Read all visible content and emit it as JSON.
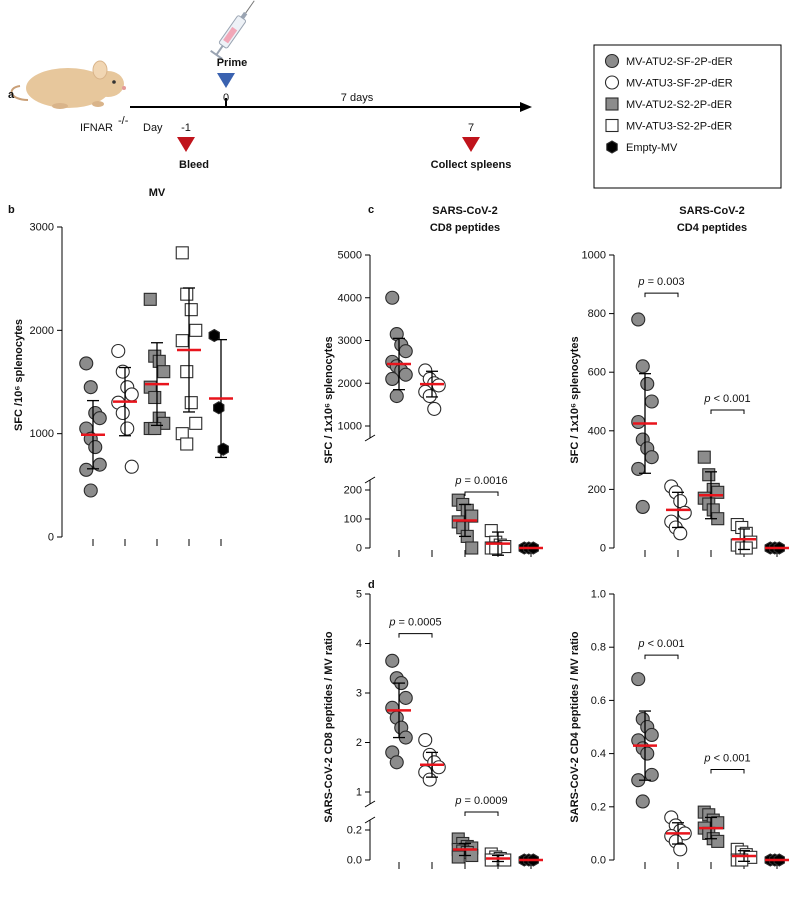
{
  "figure": {
    "panel_labels": [
      "a",
      "b",
      "c",
      "d"
    ],
    "timeline": {
      "host": "IFNAR",
      "host_sup": "-/-",
      "day_label": "Day",
      "interval": "7 days",
      "events": [
        {
          "day": "-1",
          "label": "Bleed",
          "color": "#c0141c"
        },
        {
          "day": "0",
          "label": "Prime",
          "color": "#3a62b0"
        },
        {
          "day": "7",
          "label": "Collect spleens",
          "color": "#c0141c"
        }
      ]
    },
    "legend": {
      "entries": [
        {
          "label": "MV-ATU2-SF-2P-dER",
          "marker": "circle",
          "fill": "#8c8c8c"
        },
        {
          "label": "MV-ATU3-SF-2P-dER",
          "marker": "circle",
          "fill": "#ffffff"
        },
        {
          "label": "MV-ATU2-S2-2P-dER",
          "marker": "square",
          "fill": "#8c8c8c"
        },
        {
          "label": "MV-ATU3-S2-2P-dER",
          "marker": "square",
          "fill": "#ffffff"
        },
        {
          "label": "Empty-MV",
          "marker": "hexagon",
          "fill": "#000000"
        }
      ]
    },
    "mean_color": "#e8141c"
  },
  "chart_data": [
    {
      "type": "dot",
      "title": [
        "MV"
      ],
      "ylabel": "SFC /10⁶ splenocytes",
      "ylim": [
        0,
        3000
      ],
      "yticks": [
        0,
        1000,
        2000,
        3000
      ],
      "groups": [
        {
          "values": [
            1680,
            1450,
            1200,
            1150,
            1050,
            950,
            870,
            700,
            650,
            450
          ],
          "mean": 990,
          "sd": 330
        },
        {
          "values": [
            1800,
            1600,
            1450,
            1380,
            1300,
            1200,
            1050,
            680
          ],
          "mean": 1310,
          "sd": 330
        },
        {
          "values": [
            2300,
            1750,
            1700,
            1600,
            1450,
            1350,
            1150,
            1100,
            1050,
            1050
          ],
          "mean": 1480,
          "sd": 400
        },
        {
          "values": [
            2750,
            2350,
            2200,
            2000,
            1900,
            1600,
            1300,
            1100,
            1000,
            900
          ],
          "mean": 1810,
          "sd": 600
        },
        {
          "values": [
            1950,
            1250,
            850
          ],
          "mean": 1340,
          "sd": 570
        }
      ],
      "annotations": []
    },
    {
      "type": "dot",
      "title": [
        "SARS-CoV-2",
        "CD8 peptides"
      ],
      "ylabel": "SFC / 1x10⁶ splenocytes",
      "ysegments": [
        {
          "ylim": [
            0,
            200
          ],
          "yticks": [
            0,
            100,
            200
          ]
        },
        {
          "ylim": [
            1000,
            5000
          ],
          "yticks": [
            1000,
            2000,
            3000,
            4000,
            5000
          ]
        }
      ],
      "groups": [
        {
          "values": [
            4000,
            3150,
            2900,
            2750,
            2500,
            2400,
            2300,
            2200,
            2100,
            1700
          ],
          "mean": 2450,
          "sd": 600
        },
        {
          "values": [
            2300,
            2100,
            2000,
            1950,
            1800,
            1700,
            1400
          ],
          "mean": 1980,
          "sd": 300
        },
        {
          "values": [
            165,
            150,
            130,
            110,
            90,
            70,
            40,
            0
          ],
          "mean": 95,
          "sd": 55
        },
        {
          "values": [
            60,
            20,
            10,
            5,
            0,
            0
          ],
          "mean": 15,
          "sd": 40
        },
        {
          "values": [
            0,
            0,
            0
          ],
          "mean": 0,
          "sd": 0
        }
      ],
      "annotations": [
        {
          "text": "p = 0.0016",
          "from": 2,
          "to": 3,
          "y": 193
        }
      ]
    },
    {
      "type": "dot",
      "title": [
        "SARS-CoV-2",
        "CD4 peptides"
      ],
      "ylabel": "SFC / 1x10⁶ splenocytes",
      "ylim": [
        0,
        1000
      ],
      "yticks": [
        0,
        200,
        400,
        600,
        800,
        1000
      ],
      "groups": [
        {
          "values": [
            780,
            620,
            560,
            500,
            430,
            370,
            340,
            310,
            270,
            140
          ],
          "mean": 425,
          "sd": 170
        },
        {
          "values": [
            210,
            190,
            160,
            120,
            90,
            70,
            50
          ],
          "mean": 130,
          "sd": 60
        },
        {
          "values": [
            310,
            250,
            200,
            190,
            170,
            150,
            130,
            100
          ],
          "mean": 180,
          "sd": 80
        },
        {
          "values": [
            80,
            70,
            50,
            20,
            10,
            0,
            0
          ],
          "mean": 30,
          "sd": 35
        },
        {
          "values": [
            0,
            0,
            0
          ],
          "mean": 0,
          "sd": 0
        }
      ],
      "annotations": [
        {
          "text": "p = 0.003",
          "from": 0,
          "to": 1,
          "y": 870
        },
        {
          "text": "p < 0.001",
          "from": 2,
          "to": 3,
          "y": 471
        }
      ]
    },
    {
      "type": "dot",
      "ylabel": "SARS-CoV-2 CD8 peptides / MV ratio",
      "ysegments": [
        {
          "ylim": [
            0,
            0.2
          ],
          "yticks": [
            {
              "value": 0,
              "label": "0.0"
            },
            0.2
          ]
        },
        {
          "ylim": [
            1,
            5
          ],
          "yticks": [
            1,
            2,
            3,
            4,
            5
          ]
        }
      ],
      "groups": [
        {
          "values": [
            3.65,
            3.3,
            3.2,
            2.9,
            2.7,
            2.5,
            2.3,
            2.1,
            1.8,
            1.6
          ],
          "mean": 2.65,
          "sd": 0.55
        },
        {
          "values": [
            2.05,
            1.75,
            1.6,
            1.5,
            1.4,
            1.25
          ],
          "mean": 1.55,
          "sd": 0.25
        },
        {
          "values": [
            0.14,
            0.11,
            0.09,
            0.08,
            0.07,
            0.06,
            0.05,
            0.03,
            0.02
          ],
          "mean": 0.07,
          "sd": 0.04
        },
        {
          "values": [
            0.04,
            0.02,
            0.01,
            0,
            0
          ],
          "mean": 0.01,
          "sd": 0.02
        },
        {
          "values": [
            0,
            0,
            0
          ],
          "mean": 0,
          "sd": 0
        }
      ],
      "annotations": [
        {
          "text": "p = 0.0005",
          "from": 0,
          "to": 1,
          "y": 4.2
        },
        {
          "text": "p = 0.0009",
          "from": 2,
          "to": 3,
          "y": 0.32
        }
      ]
    },
    {
      "type": "dot",
      "ylabel": "SARS-CoV-2 CD4 peptides / MV ratio",
      "ylim": [
        0,
        1
      ],
      "yticks": [
        {
          "value": 0,
          "label": "0.0"
        },
        0.2,
        0.4,
        0.6,
        0.8,
        {
          "value": 1,
          "label": "1.0"
        }
      ],
      "groups": [
        {
          "values": [
            0.68,
            0.53,
            0.5,
            0.47,
            0.45,
            0.42,
            0.4,
            0.32,
            0.3,
            0.22
          ],
          "mean": 0.43,
          "sd": 0.13
        },
        {
          "values": [
            0.16,
            0.13,
            0.11,
            0.1,
            0.09,
            0.07,
            0.04
          ],
          "mean": 0.1,
          "sd": 0.04
        },
        {
          "values": [
            0.18,
            0.17,
            0.15,
            0.14,
            0.12,
            0.1,
            0.08,
            0.07
          ],
          "mean": 0.12,
          "sd": 0.04
        },
        {
          "values": [
            0.04,
            0.03,
            0.02,
            0.01,
            0,
            0
          ],
          "mean": 0.015,
          "sd": 0.02
        },
        {
          "values": [
            0,
            0,
            0
          ],
          "mean": 0,
          "sd": 0
        }
      ],
      "annotations": [
        {
          "text": "p < 0.001",
          "from": 0,
          "to": 1,
          "y": 0.77
        },
        {
          "text": "p < 0.001",
          "from": 2,
          "to": 3,
          "y": 0.34
        }
      ]
    }
  ]
}
